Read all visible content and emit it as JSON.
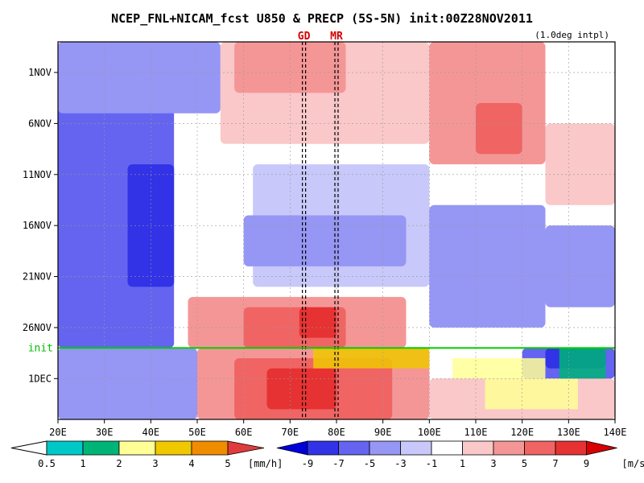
{
  "chart_data": {
    "type": "heatmap",
    "title": "NCEP_FNL+NICAM_fcst U850 & PRECP (5S-5N) init:00Z28NOV2011",
    "subtitle": "(1.0deg intpl)",
    "x_ticks": [
      "20E",
      "30E",
      "40E",
      "50E",
      "60E",
      "70E",
      "80E",
      "90E",
      "100E",
      "110E",
      "120E",
      "130E",
      "140E"
    ],
    "x_range": [
      20,
      140
    ],
    "y_ticks": [
      "1NOV",
      "6NOV",
      "11NOV",
      "16NOV",
      "21NOV",
      "26NOV",
      "1DEC"
    ],
    "y_tick_dates": [
      "2011-11-01",
      "2011-11-06",
      "2011-11-11",
      "2011-11-16",
      "2011-11-21",
      "2011-11-26",
      "2011-12-01"
    ],
    "y_range": [
      "2011-10-29",
      "2011-12-05"
    ],
    "reference_lines": [
      {
        "label": "GD",
        "lon": 73
      },
      {
        "label": "MR",
        "lon": 80
      }
    ],
    "init_line": {
      "label": "init",
      "date": "2011-11-28"
    },
    "grid": true,
    "regions_u850": [
      {
        "lon": [
          20,
          45
        ],
        "date": [
          "2011-10-29",
          "2011-11-28"
        ],
        "value": -5
      },
      {
        "lon": [
          35,
          45
        ],
        "date": [
          "2011-11-10",
          "2011-11-22"
        ],
        "value": -7
      },
      {
        "lon": [
          20,
          55
        ],
        "date": [
          "2011-10-29",
          "2011-11-05"
        ],
        "value": -3
      },
      {
        "lon": [
          55,
          100
        ],
        "date": [
          "2011-10-29",
          "2011-11-08"
        ],
        "value": 3
      },
      {
        "lon": [
          58,
          82
        ],
        "date": [
          "2011-10-29",
          "2011-11-03"
        ],
        "value": 5
      },
      {
        "lon": [
          100,
          125
        ],
        "date": [
          "2011-10-29",
          "2011-11-10"
        ],
        "value": 5
      },
      {
        "lon": [
          110,
          120
        ],
        "date": [
          "2011-11-04",
          "2011-11-09"
        ],
        "value": 7
      },
      {
        "lon": [
          50,
          62
        ],
        "date": [
          "2011-11-08",
          "2011-11-22"
        ],
        "value": 1
      },
      {
        "lon": [
          62,
          100
        ],
        "date": [
          "2011-11-10",
          "2011-11-22"
        ],
        "value": -1
      },
      {
        "lon": [
          60,
          95
        ],
        "date": [
          "2011-11-15",
          "2011-11-20"
        ],
        "value": -3
      },
      {
        "lon": [
          100,
          125
        ],
        "date": [
          "2011-11-14",
          "2011-11-26"
        ],
        "value": -3
      },
      {
        "lon": [
          125,
          140
        ],
        "date": [
          "2011-11-06",
          "2011-11-14"
        ],
        "value": 3
      },
      {
        "lon": [
          125,
          140
        ],
        "date": [
          "2011-11-16",
          "2011-11-24"
        ],
        "value": -3
      },
      {
        "lon": [
          48,
          95
        ],
        "date": [
          "2011-11-23",
          "2011-11-28"
        ],
        "value": 5
      },
      {
        "lon": [
          60,
          82
        ],
        "date": [
          "2011-11-24",
          "2011-11-28"
        ],
        "value": 7
      },
      {
        "lon": [
          72,
          80
        ],
        "date": [
          "2011-11-24",
          "2011-11-27"
        ],
        "value": 9
      },
      {
        "lon": [
          50,
          100
        ],
        "date": [
          "2011-11-28",
          "2011-12-05"
        ],
        "value": 5
      },
      {
        "lon": [
          58,
          92
        ],
        "date": [
          "2011-11-29",
          "2011-12-05"
        ],
        "value": 7
      },
      {
        "lon": [
          65,
          80
        ],
        "date": [
          "2011-11-30",
          "2011-12-04"
        ],
        "value": 9
      },
      {
        "lon": [
          20,
          50
        ],
        "date": [
          "2011-11-28",
          "2011-12-05"
        ],
        "value": -3
      },
      {
        "lon": [
          100,
          140
        ],
        "date": [
          "2011-12-01",
          "2011-12-05"
        ],
        "value": 3
      },
      {
        "lon": [
          120,
          140
        ],
        "date": [
          "2011-11-28",
          "2011-12-01"
        ],
        "value": -5
      },
      {
        "lon": [
          125,
          138
        ],
        "date": [
          "2011-11-28",
          "2011-11-30"
        ],
        "value": -7
      }
    ],
    "regions_precip": [
      {
        "lon": [
          75,
          100
        ],
        "date": [
          "2011-11-28",
          "2011-11-30"
        ],
        "value": 3
      },
      {
        "lon": [
          105,
          125
        ],
        "date": [
          "2011-11-29",
          "2011-12-01"
        ],
        "value": 2
      },
      {
        "lon": [
          112,
          132
        ],
        "date": [
          "2011-12-01",
          "2011-12-04"
        ],
        "value": 2
      },
      {
        "lon": [
          128,
          138
        ],
        "date": [
          "2011-11-28",
          "2011-12-01"
        ],
        "value": 1
      }
    ],
    "colorbar_precip": {
      "ticks": [
        "0.5",
        "1",
        "2",
        "3",
        "4",
        "5"
      ],
      "unit": "[mm/h]",
      "colors": [
        "#00c8c8",
        "#00b478",
        "#ffff96",
        "#f0c800",
        "#f08c00",
        "#e03c3c"
      ]
    },
    "colorbar_u850": {
      "ticks": [
        "-9",
        "-7",
        "-5",
        "-3",
        "-1",
        "1",
        "3",
        "5",
        "7",
        "9"
      ],
      "unit": "[m/s]",
      "colors": [
        "#0000d8",
        "#3232e6",
        "#6464f0",
        "#9696f5",
        "#c8c8fa",
        "#ffffff",
        "#fac8c8",
        "#f59696",
        "#f06464",
        "#e63232",
        "#d80000"
      ]
    }
  }
}
